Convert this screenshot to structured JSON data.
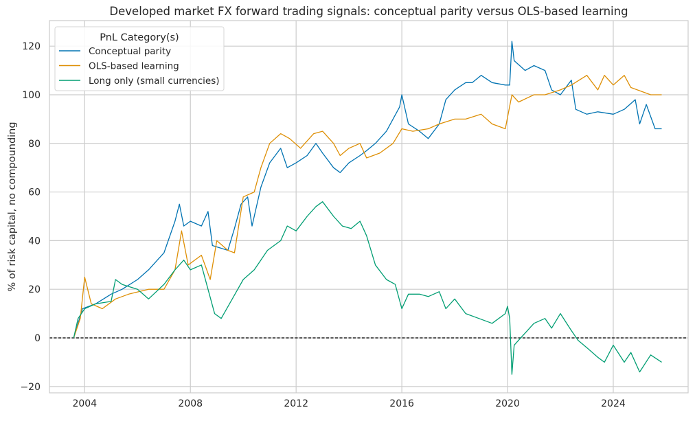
{
  "chart_data": {
    "type": "line",
    "title": "Developed market FX forward trading signals: conceptual parity versus OLS-based learning",
    "xlabel": "",
    "ylabel": "% of risk capital, no compounding",
    "xlim": [
      "2002-09",
      "2026-11"
    ],
    "ylim": [
      -22.6,
      130.5
    ],
    "x_ticks": [
      "2004",
      "2008",
      "2012",
      "2016",
      "2020",
      "2024"
    ],
    "y_ticks": [
      -20,
      0,
      20,
      40,
      60,
      80,
      100,
      120
    ],
    "grid": true,
    "reference_line": {
      "y": 0,
      "style": "dashed",
      "color": "#000000"
    },
    "legend": {
      "title": "PnL Category(s)",
      "placement": "top-left"
    },
    "series": [
      {
        "name": "Conceptual parity",
        "color": "#0173b2",
        "points": [
          [
            "2003-08",
            0
          ],
          [
            "2003-12",
            12
          ],
          [
            "2004-06",
            14
          ],
          [
            "2005-01",
            18
          ],
          [
            "2005-06",
            20
          ],
          [
            "2006-01",
            24
          ],
          [
            "2006-06",
            28
          ],
          [
            "2007-01",
            35
          ],
          [
            "2007-06",
            48
          ],
          [
            "2007-08",
            55
          ],
          [
            "2007-10",
            46
          ],
          [
            "2008-01",
            48
          ],
          [
            "2008-06",
            46
          ],
          [
            "2008-09",
            52
          ],
          [
            "2008-11",
            38
          ],
          [
            "2009-06",
            36
          ],
          [
            "2009-09",
            45
          ],
          [
            "2009-12",
            55
          ],
          [
            "2010-03",
            58
          ],
          [
            "2010-05",
            46
          ],
          [
            "2010-09",
            62
          ],
          [
            "2011-01",
            72
          ],
          [
            "2011-06",
            78
          ],
          [
            "2011-09",
            70
          ],
          [
            "2012-01",
            72
          ],
          [
            "2012-06",
            75
          ],
          [
            "2012-10",
            80
          ],
          [
            "2013-01",
            76
          ],
          [
            "2013-06",
            70
          ],
          [
            "2013-09",
            68
          ],
          [
            "2014-01",
            72
          ],
          [
            "2014-06",
            75
          ],
          [
            "2014-09",
            77
          ],
          [
            "2015-01",
            80
          ],
          [
            "2015-06",
            85
          ],
          [
            "2015-12",
            95
          ],
          [
            "2016-01",
            100
          ],
          [
            "2016-04",
            88
          ],
          [
            "2016-09",
            85
          ],
          [
            "2017-01",
            82
          ],
          [
            "2017-06",
            88
          ],
          [
            "2017-09",
            98
          ],
          [
            "2018-01",
            102
          ],
          [
            "2018-06",
            105
          ],
          [
            "2018-09",
            105
          ],
          [
            "2019-01",
            108
          ],
          [
            "2019-06",
            105
          ],
          [
            "2019-12",
            104
          ],
          [
            "2020-02",
            104
          ],
          [
            "2020-03",
            122
          ],
          [
            "2020-04",
            114
          ],
          [
            "2020-09",
            110
          ],
          [
            "2021-01",
            112
          ],
          [
            "2021-06",
            110
          ],
          [
            "2021-09",
            102
          ],
          [
            "2022-01",
            100
          ],
          [
            "2022-06",
            106
          ],
          [
            "2022-08",
            94
          ],
          [
            "2023-01",
            92
          ],
          [
            "2023-06",
            93
          ],
          [
            "2024-01",
            92
          ],
          [
            "2024-06",
            94
          ],
          [
            "2024-11",
            98
          ],
          [
            "2025-01",
            88
          ],
          [
            "2025-04",
            96
          ],
          [
            "2025-08",
            86
          ],
          [
            "2025-11",
            86
          ]
        ]
      },
      {
        "name": "OLS-based learning",
        "color": "#de8f05",
        "points": [
          [
            "2003-08",
            0
          ],
          [
            "2003-11",
            8
          ],
          [
            "2004-01",
            25
          ],
          [
            "2004-04",
            14
          ],
          [
            "2004-09",
            12
          ],
          [
            "2005-03",
            16
          ],
          [
            "2005-09",
            18
          ],
          [
            "2006-06",
            20
          ],
          [
            "2007-01",
            20
          ],
          [
            "2007-06",
            28
          ],
          [
            "2007-09",
            44
          ],
          [
            "2007-12",
            30
          ],
          [
            "2008-06",
            34
          ],
          [
            "2008-10",
            24
          ],
          [
            "2009-01",
            40
          ],
          [
            "2009-06",
            36
          ],
          [
            "2009-09",
            35
          ],
          [
            "2010-01",
            58
          ],
          [
            "2010-06",
            60
          ],
          [
            "2010-09",
            70
          ],
          [
            "2011-01",
            80
          ],
          [
            "2011-06",
            84
          ],
          [
            "2011-10",
            82
          ],
          [
            "2012-03",
            78
          ],
          [
            "2012-09",
            84
          ],
          [
            "2013-01",
            85
          ],
          [
            "2013-06",
            80
          ],
          [
            "2013-09",
            75
          ],
          [
            "2014-01",
            78
          ],
          [
            "2014-06",
            80
          ],
          [
            "2014-09",
            74
          ],
          [
            "2015-03",
            76
          ],
          [
            "2015-09",
            80
          ],
          [
            "2016-01",
            86
          ],
          [
            "2016-06",
            85
          ],
          [
            "2017-01",
            86
          ],
          [
            "2017-06",
            88
          ],
          [
            "2018-01",
            90
          ],
          [
            "2018-06",
            90
          ],
          [
            "2019-01",
            92
          ],
          [
            "2019-06",
            88
          ],
          [
            "2019-12",
            86
          ],
          [
            "2020-03",
            100
          ],
          [
            "2020-06",
            97
          ],
          [
            "2021-01",
            100
          ],
          [
            "2021-06",
            100
          ],
          [
            "2022-01",
            102
          ],
          [
            "2022-06",
            104
          ],
          [
            "2023-01",
            108
          ],
          [
            "2023-06",
            102
          ],
          [
            "2023-09",
            108
          ],
          [
            "2024-01",
            104
          ],
          [
            "2024-06",
            108
          ],
          [
            "2024-09",
            103
          ],
          [
            "2025-06",
            100
          ],
          [
            "2025-11",
            100
          ]
        ]
      },
      {
        "name": "Long only (small currencies)",
        "color": "#029e73",
        "points": [
          [
            "2003-08",
            0
          ],
          [
            "2003-10",
            8
          ],
          [
            "2004-01",
            12
          ],
          [
            "2004-06",
            14
          ],
          [
            "2005-01",
            15
          ],
          [
            "2005-03",
            24
          ],
          [
            "2005-06",
            22
          ],
          [
            "2006-01",
            20
          ],
          [
            "2006-06",
            16
          ],
          [
            "2007-01",
            22
          ],
          [
            "2007-06",
            28
          ],
          [
            "2007-10",
            32
          ],
          [
            "2008-01",
            28
          ],
          [
            "2008-06",
            30
          ],
          [
            "2008-09",
            20
          ],
          [
            "2008-12",
            10
          ],
          [
            "2009-03",
            8
          ],
          [
            "2009-08",
            16
          ],
          [
            "2010-01",
            24
          ],
          [
            "2010-06",
            28
          ],
          [
            "2010-12",
            36
          ],
          [
            "2011-06",
            40
          ],
          [
            "2011-09",
            46
          ],
          [
            "2012-01",
            44
          ],
          [
            "2012-06",
            50
          ],
          [
            "2012-10",
            54
          ],
          [
            "2013-01",
            56
          ],
          [
            "2013-06",
            50
          ],
          [
            "2013-10",
            46
          ],
          [
            "2014-02",
            45
          ],
          [
            "2014-06",
            48
          ],
          [
            "2014-09",
            42
          ],
          [
            "2015-01",
            30
          ],
          [
            "2015-06",
            24
          ],
          [
            "2015-10",
            22
          ],
          [
            "2016-01",
            12
          ],
          [
            "2016-04",
            18
          ],
          [
            "2016-09",
            18
          ],
          [
            "2017-01",
            17
          ],
          [
            "2017-06",
            19
          ],
          [
            "2017-09",
            12
          ],
          [
            "2018-01",
            16
          ],
          [
            "2018-06",
            10
          ],
          [
            "2018-12",
            8
          ],
          [
            "2019-06",
            6
          ],
          [
            "2019-12",
            10
          ],
          [
            "2020-01",
            13
          ],
          [
            "2020-02",
            8
          ],
          [
            "2020-03",
            -15
          ],
          [
            "2020-04",
            -3
          ],
          [
            "2020-09",
            2
          ],
          [
            "2021-01",
            6
          ],
          [
            "2021-06",
            8
          ],
          [
            "2021-09",
            4
          ],
          [
            "2022-01",
            10
          ],
          [
            "2022-06",
            3
          ],
          [
            "2022-09",
            -1
          ],
          [
            "2023-01",
            -4
          ],
          [
            "2023-06",
            -8
          ],
          [
            "2023-09",
            -10
          ],
          [
            "2024-01",
            -3
          ],
          [
            "2024-06",
            -10
          ],
          [
            "2024-09",
            -6
          ],
          [
            "2025-01",
            -14
          ],
          [
            "2025-06",
            -7
          ],
          [
            "2025-11",
            -10
          ]
        ]
      }
    ]
  }
}
